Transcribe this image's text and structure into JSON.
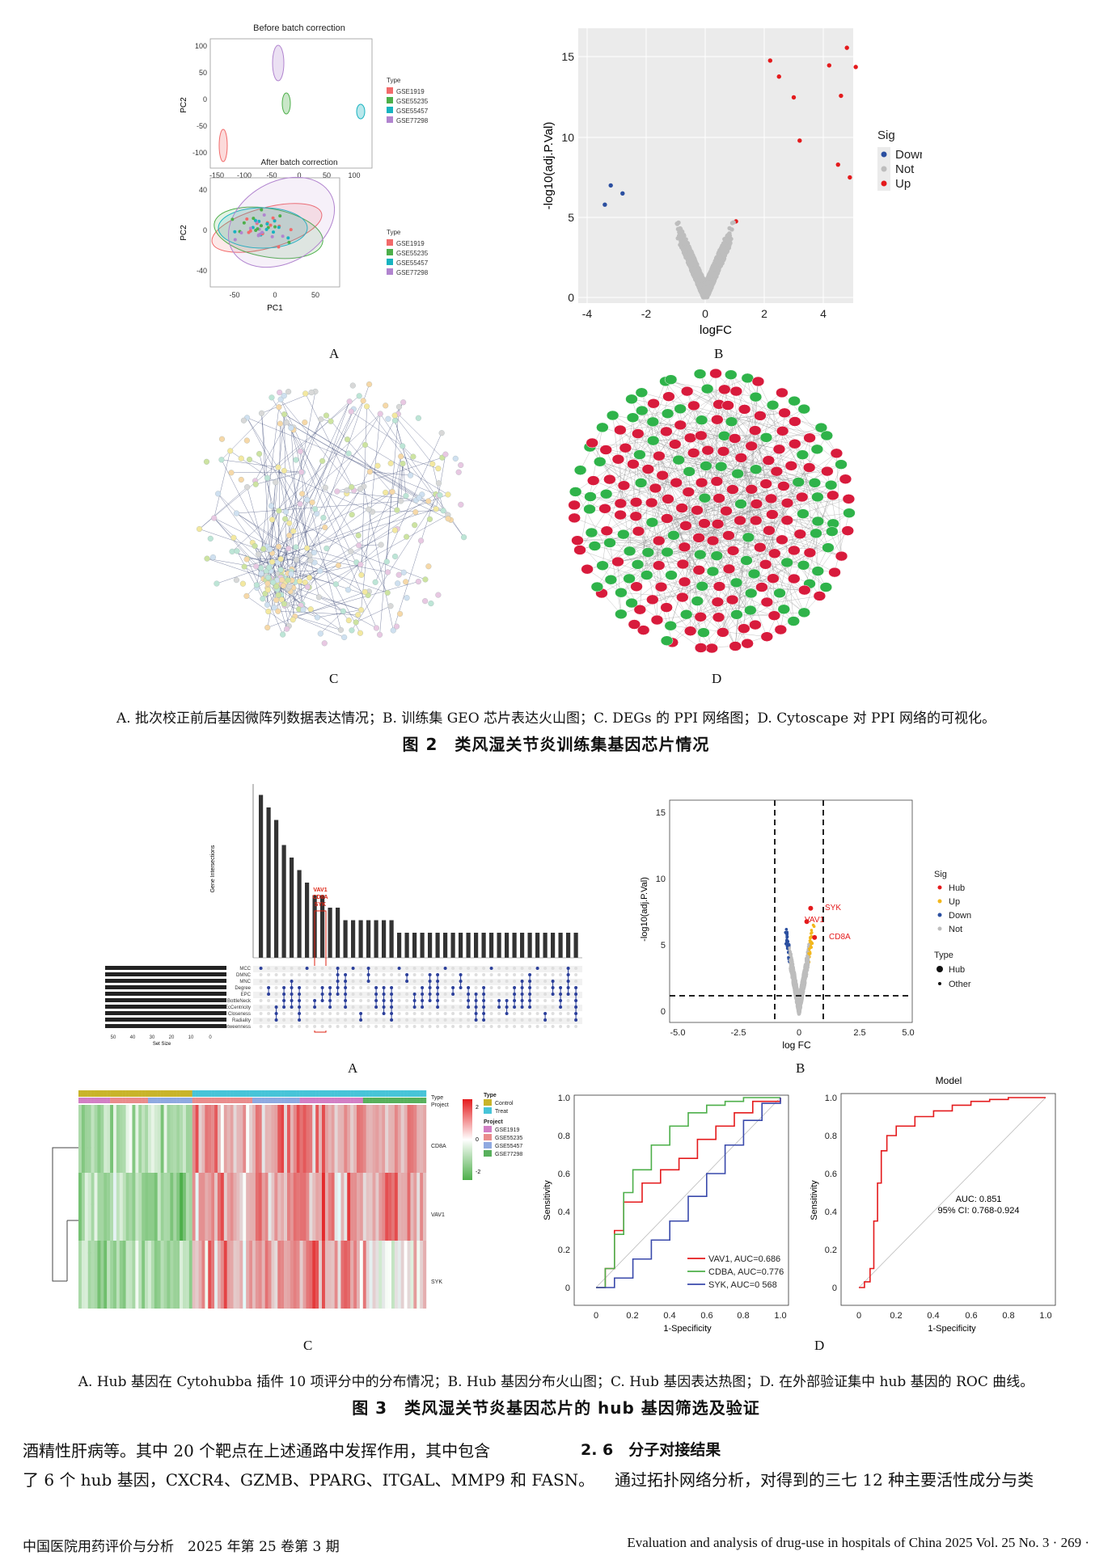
{
  "fig2": {
    "A": {
      "letter": "A",
      "top_title": "Before batch correction",
      "bottom_title": "After batch correction",
      "ylabel": "PC2",
      "xlabel": "PC1",
      "top_yticks": [
        "100",
        "50",
        "0",
        "-50",
        "-100"
      ],
      "top_xticks": [
        "-150",
        "-100",
        "-50",
        "0",
        "50",
        "100"
      ],
      "bottom_yticks": [
        "40",
        "0",
        "-40"
      ],
      "bottom_xticks": [
        "-50",
        "0",
        "50"
      ],
      "legend_title": "Type",
      "legend": [
        "GSE1919",
        "GSE55235",
        "GSE55457",
        "GSE77298"
      ]
    },
    "B": {
      "letter": "B",
      "xlabel": "logFC",
      "ylabel": "-log10(adj.P.Val)",
      "xticks": [
        "-4",
        "-2",
        "0",
        "2",
        "4"
      ],
      "yticks": [
        "0",
        "5",
        "10",
        "15"
      ],
      "legend_title": "Sig",
      "legend": [
        "Down",
        "Not",
        "Up"
      ]
    },
    "C": {
      "letter": "C"
    },
    "D": {
      "letter": "D"
    },
    "subcaption": "A. 批次校正前后基因微阵列数据表达情况；B. 训练集 GEO 芯片表达火山图；C. DEGs 的 PPI 网络图；D. Cytoscape 对 PPI 网络的可视化。",
    "title": "图 2　类风湿关节炎训练集基因芯片情况"
  },
  "fig3": {
    "A": {
      "letter": "A",
      "ylabel": "Gene Intersections",
      "xlabel": "Set Size",
      "highlight": [
        "VAV1",
        "CD8A",
        "SYK"
      ],
      "sets": [
        "MCC",
        "DMNC",
        "MNC",
        "Degree",
        "EPC",
        "BottleNeck",
        "EcCentricity",
        "Closeness",
        "Radiality",
        "Betweenness"
      ],
      "size_ticks": [
        "50",
        "40",
        "30",
        "20",
        "10",
        "0"
      ]
    },
    "B": {
      "letter": "B",
      "xlabel": "log FC",
      "ylabel": "-log10(adj.P.Val)",
      "xticks": [
        "-5.0",
        "-2.5",
        "0",
        "2.5",
        "5.0"
      ],
      "yticks": [
        "0",
        "5",
        "10",
        "15"
      ],
      "sig_title": "Sig",
      "sig": [
        "Hub",
        "Up",
        "Down",
        "Not"
      ],
      "type_title": "Type",
      "type": [
        "Hub",
        "Other"
      ],
      "labels": [
        "SYK",
        "VAV1",
        "CD8A"
      ]
    },
    "C": {
      "letter": "C",
      "genes": [
        "CD8A",
        "VAV1",
        "SYK"
      ],
      "ann_labels": [
        "Type",
        "Project"
      ],
      "type_title": "Type",
      "type_legend": [
        "Control",
        "Treat"
      ],
      "project_title": "Project",
      "project_legend": [
        "GSE1919",
        "GSE55235",
        "GSE55457",
        "GSE77298"
      ],
      "scale": [
        "2",
        "0",
        "-2"
      ]
    },
    "D": {
      "letter": "D",
      "left": {
        "xlabel": "1-Specificity",
        "ylabel": "Sensitivity",
        "ticks": [
          "0",
          "0.2",
          "0.4",
          "0.6",
          "0.8",
          "1.0"
        ],
        "legend": [
          "VAV1, AUC=0.686",
          "CDBA, AUC=0.776",
          "SYK, AUC=0 568"
        ]
      },
      "right": {
        "title": "Model",
        "xlabel": "1-Specificity",
        "ylabel": "Sensitivity",
        "ticks": [
          "0",
          "0.2",
          "0.4",
          "0.6",
          "0.8",
          "1.0"
        ],
        "auc": "AUC: 0.851",
        "ci": "95% CI: 0.768-0.924"
      }
    },
    "subcaption": "A. Hub 基因在 Cytohubba 插件 10 项评分中的分布情况；B. Hub 基因分布火山图；C. Hub 基因表达热图；D. 在外部验证集中 hub 基因的 ROC 曲线。",
    "title": "图 3　类风湿关节炎基因芯片的 hub 基因筛选及验证"
  },
  "body": {
    "left_line1": "酒精性肝病等。其中 20 个靶点在上述通路中发挥作用，其中包含",
    "left_line2": "了 6 个 hub 基因，CXCR4、GZMB、PPARG、ITGAL、MMP9 和 FASN。",
    "section_heading": "2. 6　分子对接结果",
    "right_line": "通过拓扑网络分析，对得到的三七 12 种主要活性成分与类"
  },
  "footer": {
    "left": "中国医院用药评价与分析　2025 年第 25 卷第 3 期",
    "right": "Evaluation and analysis of drug-use in hospitals of China 2025 Vol. 25 No. 3 · 269 ·"
  },
  "colors": {
    "red": "#e41a1c",
    "green": "#4daf4a",
    "blue": "#2b4fa0",
    "grey": "#bdbdbd",
    "teal": "#17b3c0",
    "pink": "#f26a6a",
    "purple": "#b184cf",
    "yellow": "#f3b71c"
  },
  "chart_data": [
    {
      "type": "scatter",
      "panel": "Fig2A-before",
      "title": "Before batch correction",
      "xlabel": "PC1",
      "ylabel": "PC2",
      "xlim": [
        -160,
        120
      ],
      "ylim": [
        -120,
        110
      ],
      "series": [
        {
          "name": "GSE1919",
          "center": [
            -145,
            -90
          ]
        },
        {
          "name": "GSE55235",
          "center": [
            -25,
            -5
          ]
        },
        {
          "name": "GSE55457",
          "center": [
            110,
            -25
          ]
        },
        {
          "name": "GSE77298",
          "center": [
            -40,
            75
          ]
        }
      ]
    },
    {
      "type": "scatter",
      "panel": "Fig2B",
      "xlabel": "logFC",
      "ylabel": "-log10(adj.P.Val)",
      "xlim": [
        -4.5,
        5.5
      ],
      "ylim": [
        0,
        16
      ],
      "series": [
        {
          "name": "Down"
        },
        {
          "name": "Not"
        },
        {
          "name": "Up"
        }
      ]
    },
    {
      "type": "bar",
      "panel": "Fig3A",
      "ylabel": "Gene Intersections",
      "values": [
        13,
        12,
        11,
        9,
        8,
        7,
        6,
        5,
        5,
        4,
        4,
        3,
        3,
        3,
        3,
        3,
        3,
        3,
        2,
        2,
        2,
        2,
        2,
        2,
        2,
        2,
        2,
        2,
        2,
        2,
        2,
        2,
        2,
        2,
        2,
        2,
        2,
        2,
        2,
        2,
        2,
        2
      ]
    },
    {
      "type": "line",
      "panel": "Fig3D-left",
      "xlabel": "1-Specificity",
      "ylabel": "Sensitivity",
      "series": [
        {
          "name": "VAV1, AUC=0.686",
          "x": [
            0,
            0.05,
            0.1,
            0.15,
            0.25,
            0.35,
            0.45,
            0.55,
            0.65,
            0.75,
            0.85,
            1.0
          ],
          "y": [
            0,
            0.1,
            0.3,
            0.45,
            0.55,
            0.62,
            0.68,
            0.78,
            0.85,
            0.92,
            0.98,
            1.0
          ]
        },
        {
          "name": "CDBA, AUC=0.776",
          "x": [
            0,
            0.05,
            0.1,
            0.15,
            0.2,
            0.3,
            0.4,
            0.5,
            0.6,
            0.7,
            0.8,
            1.0
          ],
          "y": [
            0,
            0.1,
            0.28,
            0.5,
            0.62,
            0.75,
            0.85,
            0.92,
            0.96,
            0.98,
            1.0,
            1.0
          ]
        },
        {
          "name": "SYK, AUC=0 568",
          "x": [
            0,
            0.1,
            0.2,
            0.3,
            0.4,
            0.5,
            0.6,
            0.7,
            0.8,
            0.9,
            1.0
          ],
          "y": [
            0,
            0.05,
            0.15,
            0.25,
            0.35,
            0.48,
            0.6,
            0.75,
            0.88,
            0.97,
            1.0
          ]
        }
      ]
    },
    {
      "type": "line",
      "panel": "Fig3D-right",
      "title": "Model",
      "xlabel": "1-Specificity",
      "ylabel": "Sensitivity",
      "series": [
        {
          "name": "Model",
          "x": [
            0,
            0.03,
            0.06,
            0.08,
            0.1,
            0.12,
            0.15,
            0.2,
            0.3,
            0.4,
            0.5,
            0.6,
            0.7,
            0.8,
            1.0
          ],
          "y": [
            0,
            0.03,
            0.1,
            0.35,
            0.55,
            0.72,
            0.8,
            0.85,
            0.9,
            0.93,
            0.96,
            0.98,
            0.99,
            1.0,
            1.0
          ]
        }
      ]
    }
  ]
}
